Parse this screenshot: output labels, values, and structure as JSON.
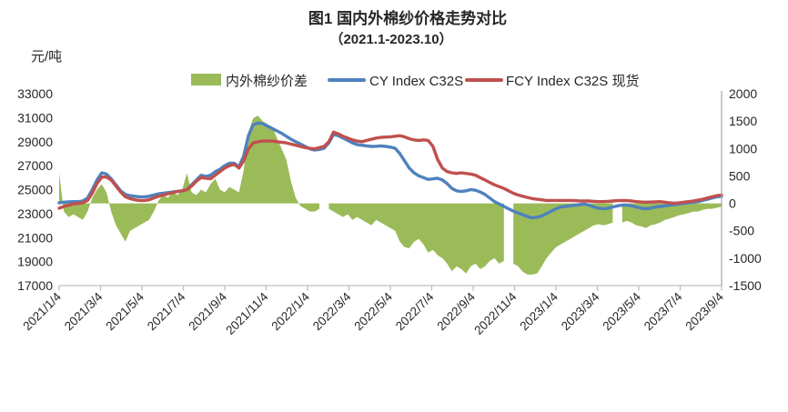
{
  "header": {
    "title": "图1 国内外棉纱价格走势对比",
    "subtitle": "（2021.1-2023.10）"
  },
  "chart_data": {
    "type": "combo",
    "subtypes": [
      "area",
      "line",
      "line"
    ],
    "x_unit": "week",
    "x_start": "2021/1/4",
    "n_points": 141,
    "grid": "off",
    "legend_position": "top",
    "x_tick_labels": [
      "2021/1/4",
      "2021/3/4",
      "2021/5/4",
      "2021/7/4",
      "2021/9/4",
      "2021/11/4",
      "2022/1/4",
      "2022/3/4",
      "2022/5/4",
      "2022/7/4",
      "2022/9/4",
      "2022/11/4",
      "2023/1/4",
      "2023/3/4",
      "2023/5/4",
      "2023/7/4",
      "2023/9/4"
    ],
    "left_axis": {
      "unit": "元/吨",
      "min": 17000,
      "max": 33000,
      "ticks": [
        33000,
        31000,
        29000,
        27000,
        25000,
        23000,
        21000,
        19000,
        17000
      ]
    },
    "right_axis": {
      "min": -1500,
      "max": 2000,
      "ticks": [
        2000,
        1500,
        1000,
        500,
        0,
        -500,
        -1000,
        -1500
      ]
    },
    "axis_line_color": "#BFBFBF",
    "right_axis_line_color": "#A6A6A6",
    "series": [
      {
        "name": "内外棉纱价差",
        "type": "area",
        "axis": "right",
        "color": "#9BBB59",
        "values": [
          550,
          -150,
          -250,
          -200,
          -250,
          -300,
          -150,
          100,
          250,
          350,
          200,
          -150,
          -400,
          -550,
          -700,
          -500,
          -450,
          -400,
          -350,
          -300,
          -150,
          50,
          150,
          100,
          200,
          150,
          250,
          550,
          200,
          150,
          250,
          200,
          350,
          450,
          250,
          200,
          300,
          250,
          200,
          600,
          1300,
          1550,
          1600,
          1500,
          1450,
          1400,
          1200,
          1000,
          800,
          400,
          100,
          -50,
          -100,
          -150,
          -150,
          -100,
          null,
          -100,
          -150,
          -200,
          -250,
          -200,
          -300,
          -250,
          -300,
          -350,
          -400,
          -300,
          -350,
          -400,
          -450,
          -500,
          -700,
          -800,
          -820,
          -700,
          -650,
          -750,
          -900,
          -850,
          -950,
          -1000,
          -1100,
          -1240,
          -1150,
          -1200,
          -1280,
          -1150,
          -1100,
          -1200,
          -1150,
          -1050,
          -1000,
          -1100,
          -1050,
          null,
          -1100,
          -1150,
          -1250,
          -1300,
          -1300,
          -1280,
          -1150,
          -1000,
          -900,
          -800,
          -750,
          -700,
          -650,
          -600,
          -550,
          -500,
          -450,
          -400,
          -380,
          -400,
          -380,
          -350,
          null,
          -350,
          -320,
          -350,
          -400,
          -420,
          -450,
          -400,
          -380,
          -350,
          -300,
          -280,
          -250,
          -220,
          -200,
          -180,
          -150,
          -150,
          -120,
          -100,
          -100,
          -80,
          -60
        ]
      },
      {
        "name": "CY Index C32S",
        "type": "line",
        "axis": "left",
        "color": "#4F81BD",
        "values": [
          23900,
          23950,
          23980,
          24000,
          24000,
          24050,
          24300,
          25000,
          25800,
          26400,
          26300,
          25900,
          25400,
          24900,
          24600,
          24500,
          24450,
          24400,
          24400,
          24450,
          24550,
          24650,
          24700,
          24750,
          24800,
          24850,
          24900,
          25000,
          25400,
          25800,
          26200,
          26100,
          26200,
          26500,
          26700,
          27000,
          27200,
          27200,
          26900,
          27800,
          29500,
          30400,
          30550,
          30500,
          30300,
          30100,
          29900,
          29700,
          29450,
          29200,
          29000,
          28800,
          28600,
          28400,
          28300,
          28350,
          28450,
          28900,
          29600,
          29500,
          29300,
          29100,
          28900,
          28750,
          28700,
          28650,
          28600,
          28620,
          28650,
          28600,
          28550,
          28450,
          28000,
          27400,
          26800,
          26400,
          26150,
          26000,
          25850,
          25900,
          25950,
          25800,
          25500,
          25100,
          24900,
          24850,
          24900,
          25000,
          24950,
          24800,
          24600,
          24300,
          24000,
          23800,
          23600,
          23400,
          23200,
          23050,
          22900,
          22750,
          22650,
          22700,
          22800,
          23000,
          23200,
          23400,
          23550,
          23600,
          23650,
          23700,
          23750,
          23800,
          23700,
          23550,
          23450,
          23400,
          23450,
          23550,
          23650,
          23700,
          23700,
          23650,
          23550,
          23450,
          23400,
          23450,
          23550,
          23600,
          23650,
          23700,
          23750,
          23800,
          23850,
          23900,
          23950,
          24000,
          24100,
          24200,
          24300,
          24400,
          24450
        ]
      },
      {
        "name": "FCY Index C32S 现货",
        "type": "line",
        "axis": "left",
        "color": "#C0504D",
        "values": [
          23450,
          23600,
          23700,
          23800,
          23850,
          23900,
          24100,
          24700,
          25500,
          26050,
          26050,
          25800,
          25300,
          24800,
          24400,
          24250,
          24150,
          24100,
          24100,
          24150,
          24300,
          24450,
          24550,
          24650,
          24750,
          24850,
          24900,
          25000,
          25300,
          25700,
          26000,
          25950,
          25900,
          26200,
          26500,
          26800,
          27000,
          27100,
          26800,
          27400,
          28400,
          28900,
          29000,
          29050,
          29050,
          29050,
          29000,
          28950,
          28900,
          28800,
          28700,
          28600,
          28500,
          28450,
          28400,
          28500,
          28600,
          29000,
          29800,
          29650,
          29450,
          29300,
          29150,
          29050,
          29000,
          29100,
          29200,
          29300,
          29350,
          29380,
          29400,
          29450,
          29500,
          29400,
          29250,
          29150,
          29100,
          29150,
          29100,
          28600,
          27500,
          26800,
          26500,
          26400,
          26350,
          26400,
          26350,
          26300,
          26200,
          26000,
          25800,
          25600,
          25400,
          25250,
          25100,
          24900,
          24700,
          24550,
          24450,
          24350,
          24250,
          24200,
          24150,
          24100,
          24100,
          24100,
          24100,
          24100,
          24100,
          24080,
          24060,
          24050,
          24050,
          24020,
          24000,
          24000,
          24020,
          24050,
          24080,
          24100,
          24080,
          24050,
          24000,
          23970,
          23950,
          23960,
          23980,
          24000,
          23950,
          23900,
          23870,
          23900,
          23950,
          24000,
          24050,
          24120,
          24200,
          24300,
          24400,
          24500,
          24550
        ]
      }
    ]
  }
}
